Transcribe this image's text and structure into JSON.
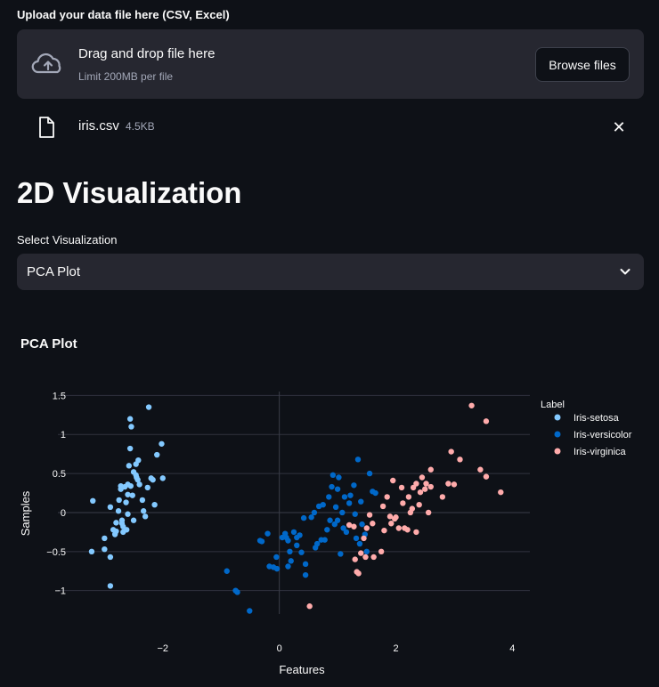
{
  "upload": {
    "label": "Upload your data file here (CSV, Excel)",
    "drop_title": "Drag and drop file here",
    "drop_sub": "Limit 200MB per file",
    "browse_label": "Browse files"
  },
  "file": {
    "name": "iris.csv",
    "size": "4.5KB",
    "close_glyph": "✕"
  },
  "page_title": "2D Visualization",
  "select": {
    "label": "Select Visualization",
    "value": "PCA Plot"
  },
  "chart_title": "PCA Plot",
  "chart_data": {
    "type": "scatter",
    "xlabel": "Features",
    "ylabel": "Samples",
    "xlim": [
      -3.8,
      4.3
    ],
    "ylim": [
      -1.3,
      1.55
    ],
    "xticks": [
      -2,
      0,
      2,
      4
    ],
    "yticks": [
      -1,
      -0.5,
      0,
      0.5,
      1,
      1.5
    ],
    "xtick_labels": [
      "−2",
      "0",
      "2",
      "4"
    ],
    "ytick_labels": [
      "−1",
      "−0.5",
      "0",
      "0.5",
      "1",
      "1.5"
    ],
    "grid": true,
    "legend_title": "Label",
    "legend_position": "right",
    "series": [
      {
        "name": "Iris-setosa",
        "color": "#83c9ff",
        "points": [
          [
            -3.2,
            0.15
          ],
          [
            -3.22,
            -0.5
          ],
          [
            -3.0,
            -0.33
          ],
          [
            -3.0,
            -0.47
          ],
          [
            -2.9,
            -0.57
          ],
          [
            -2.9,
            -0.94
          ],
          [
            -2.9,
            0.07
          ],
          [
            -2.85,
            -0.22
          ],
          [
            -2.8,
            -0.13
          ],
          [
            -2.82,
            -0.28
          ],
          [
            -2.8,
            -0.24
          ],
          [
            -2.76,
            0.02
          ],
          [
            -2.75,
            0.16
          ],
          [
            -2.72,
            0.3
          ],
          [
            -2.72,
            0.34
          ],
          [
            -2.7,
            -0.1
          ],
          [
            -2.7,
            -0.14
          ],
          [
            -2.68,
            -0.18
          ],
          [
            -2.68,
            -0.25
          ],
          [
            -2.65,
            0.33
          ],
          [
            -2.63,
            0.13
          ],
          [
            -2.62,
            -0.22
          ],
          [
            -2.6,
            0.23
          ],
          [
            -2.6,
            -0.02
          ],
          [
            -2.58,
            0.6
          ],
          [
            -2.56,
            0.82
          ],
          [
            -2.56,
            1.2
          ],
          [
            -2.54,
            1.1
          ],
          [
            -2.55,
            0.34
          ],
          [
            -2.52,
            0.22
          ],
          [
            -2.5,
            0.52
          ],
          [
            -2.5,
            -0.1
          ],
          [
            -2.46,
            0.48
          ],
          [
            -2.46,
            0.62
          ],
          [
            -2.45,
            0.45
          ],
          [
            -2.43,
            0.42
          ],
          [
            -2.42,
            0.67
          ],
          [
            -2.4,
            0.36
          ],
          [
            -2.35,
            0.16
          ],
          [
            -2.33,
            0.02
          ],
          [
            -2.3,
            -0.05
          ],
          [
            -2.26,
            0.32
          ],
          [
            -2.24,
            1.35
          ],
          [
            -2.2,
            0.44
          ],
          [
            -2.17,
            0.42
          ],
          [
            -2.14,
            0.1
          ],
          [
            -2.1,
            0.74
          ],
          [
            -2.02,
            0.88
          ],
          [
            -2.0,
            0.44
          ],
          [
            -2.6,
            0.36
          ]
        ]
      },
      {
        "name": "Iris-versicolor",
        "color": "#0068c9",
        "points": [
          [
            -0.9,
            -0.75
          ],
          [
            -0.75,
            -1.0
          ],
          [
            -0.72,
            -1.02
          ],
          [
            -0.51,
            -1.26
          ],
          [
            -0.33,
            -0.36
          ],
          [
            -0.3,
            -0.37
          ],
          [
            -0.2,
            -0.27
          ],
          [
            -0.17,
            -0.69
          ],
          [
            -0.1,
            -0.7
          ],
          [
            -0.04,
            -0.72
          ],
          [
            -0.05,
            -0.57
          ],
          [
            0.05,
            -0.32
          ],
          [
            0.1,
            -0.27
          ],
          [
            0.12,
            -0.32
          ],
          [
            0.15,
            -0.36
          ],
          [
            0.15,
            -0.69
          ],
          [
            0.18,
            -0.5
          ],
          [
            0.2,
            -0.62
          ],
          [
            0.25,
            -0.25
          ],
          [
            0.3,
            -0.42
          ],
          [
            0.3,
            -0.32
          ],
          [
            0.35,
            -0.29
          ],
          [
            0.38,
            -0.51
          ],
          [
            0.42,
            -0.07
          ],
          [
            0.45,
            -0.8
          ],
          [
            0.45,
            -0.66
          ],
          [
            0.55,
            -0.06
          ],
          [
            0.6,
            0.0
          ],
          [
            0.62,
            -0.45
          ],
          [
            0.65,
            -0.4
          ],
          [
            0.68,
            0.08
          ],
          [
            0.72,
            -0.35
          ],
          [
            0.75,
            0.1
          ],
          [
            0.78,
            -0.35
          ],
          [
            0.82,
            -0.22
          ],
          [
            0.85,
            0.2
          ],
          [
            0.87,
            -0.1
          ],
          [
            0.9,
            0.33
          ],
          [
            0.92,
            0.48
          ],
          [
            0.95,
            -0.15
          ],
          [
            0.97,
            0.07
          ],
          [
            1.0,
            -0.1
          ],
          [
            1.0,
            0.3
          ],
          [
            1.02,
            0.45
          ],
          [
            1.05,
            -0.53
          ],
          [
            1.08,
            0.0
          ],
          [
            1.1,
            -0.2
          ],
          [
            1.12,
            0.2
          ],
          [
            1.15,
            -0.25
          ],
          [
            1.2,
            0.12
          ],
          [
            1.22,
            0.22
          ],
          [
            1.28,
            0.35
          ],
          [
            1.3,
            -0.02
          ],
          [
            1.32,
            -0.33
          ],
          [
            1.35,
            0.68
          ],
          [
            1.38,
            -0.4
          ],
          [
            1.4,
            0.14
          ],
          [
            1.42,
            -0.15
          ],
          [
            1.47,
            -0.28
          ],
          [
            1.5,
            -0.5
          ],
          [
            1.55,
            0.5
          ],
          [
            1.6,
            0.27
          ],
          [
            1.65,
            0.25
          ]
        ]
      },
      {
        "name": "Iris-virginica",
        "color": "#ffabab",
        "points": [
          [
            0.52,
            -1.2
          ],
          [
            1.2,
            -0.16
          ],
          [
            1.28,
            -0.18
          ],
          [
            1.3,
            -0.6
          ],
          [
            1.33,
            -0.76
          ],
          [
            1.36,
            -0.78
          ],
          [
            1.4,
            -0.52
          ],
          [
            1.45,
            -0.33
          ],
          [
            1.48,
            -0.57
          ],
          [
            1.5,
            -0.2
          ],
          [
            1.55,
            -0.03
          ],
          [
            1.6,
            -0.14
          ],
          [
            1.62,
            -0.57
          ],
          [
            1.75,
            -0.5
          ],
          [
            1.78,
            0.08
          ],
          [
            1.8,
            -0.23
          ],
          [
            1.85,
            0.2
          ],
          [
            1.9,
            -0.05
          ],
          [
            1.92,
            -0.14
          ],
          [
            1.95,
            0.41
          ],
          [
            1.98,
            -0.08
          ],
          [
            2.0,
            -0.06
          ],
          [
            2.05,
            -0.2
          ],
          [
            2.1,
            0.32
          ],
          [
            2.12,
            0.12
          ],
          [
            2.15,
            -0.2
          ],
          [
            2.2,
            -0.22
          ],
          [
            2.22,
            0.2
          ],
          [
            2.25,
            0.0
          ],
          [
            2.28,
            0.05
          ],
          [
            2.3,
            0.32
          ],
          [
            2.35,
            0.37
          ],
          [
            2.35,
            -0.25
          ],
          [
            2.4,
            0.1
          ],
          [
            2.42,
            0.26
          ],
          [
            2.45,
            0.45
          ],
          [
            2.5,
            0.3
          ],
          [
            2.52,
            0.37
          ],
          [
            2.56,
            0.0
          ],
          [
            2.6,
            0.55
          ],
          [
            2.6,
            0.33
          ],
          [
            2.8,
            0.2
          ],
          [
            2.9,
            0.37
          ],
          [
            2.95,
            0.78
          ],
          [
            3.0,
            0.36
          ],
          [
            3.1,
            0.68
          ],
          [
            3.3,
            1.37
          ],
          [
            3.45,
            0.55
          ],
          [
            3.55,
            1.17
          ],
          [
            3.55,
            0.46
          ],
          [
            3.8,
            0.26
          ]
        ]
      }
    ]
  }
}
